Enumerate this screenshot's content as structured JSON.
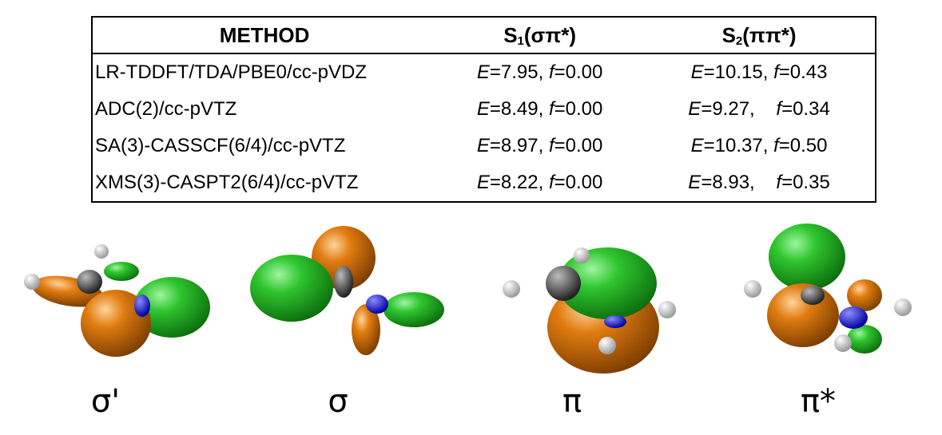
{
  "table": {
    "headers": {
      "method": "METHOD",
      "s1_main": "S",
      "s1_sub": "1",
      "s1_tail": "(σπ*)",
      "s2_main": "S",
      "s2_sub": "2",
      "s2_tail": "(ππ*)"
    },
    "rows": [
      {
        "method": "LR-TDDFT/TDA/PBE0/cc-pVDZ",
        "s1_E": "=7.95, ",
        "s1_f": "=0.00",
        "s2_E": "=10.15, ",
        "s2_f": "=0.43"
      },
      {
        "method": "ADC(2)/cc-pVTZ",
        "s1_E": "=8.49, ",
        "s1_f": "=0.00",
        "s2_E": "=9.27,    ",
        "s2_f": "=0.34"
      },
      {
        "method": "SA(3)-CASSCF(6/4)/cc-pVTZ",
        "s1_E": "=8.97, ",
        "s1_f": "=0.00",
        "s2_E": "=10.37, ",
        "s2_f": "=0.50"
      },
      {
        "method": "XMS(3)-CASPT2(6/4)/cc-pVTZ",
        "s1_E": "=8.22, ",
        "s1_f": "=0.00",
        "s2_E": "=8.93,    ",
        "s2_f": "=0.35"
      }
    ],
    "e_symbol": "E",
    "f_symbol": "f"
  },
  "orbital_labels": [
    "σ'",
    "σ",
    "π",
    "π*"
  ],
  "colors": {
    "lobe_positive": "#2fc62f",
    "lobe_negative": "#e07c10",
    "carbon": "#555555",
    "nitrogen": "#1a1ae0",
    "hydrogen": "#f0f0f0"
  }
}
